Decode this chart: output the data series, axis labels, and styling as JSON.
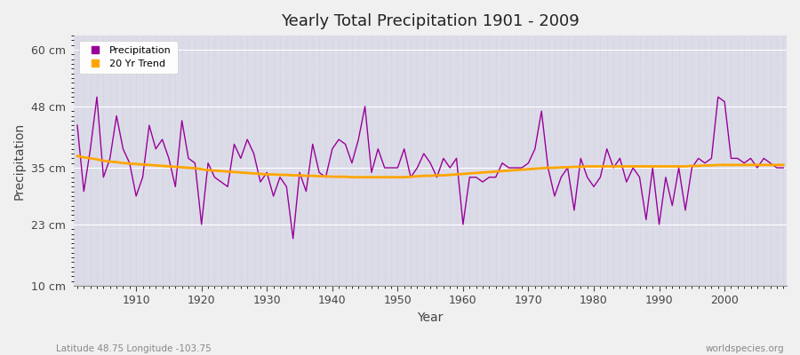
{
  "title": "Yearly Total Precipitation 1901 - 2009",
  "xlabel": "Year",
  "ylabel": "Precipitation",
  "subtitle_left": "Latitude 48.75 Longitude -103.75",
  "subtitle_right": "worldspecies.org",
  "fig_bg_color": "#f0f0f0",
  "plot_bg_color": "#dcdce8",
  "line_color": "#990099",
  "trend_color": "#FFA500",
  "yticks": [
    10,
    23,
    35,
    48,
    60
  ],
  "ytick_labels": [
    "10 cm",
    "23 cm",
    "35 cm",
    "48 cm",
    "60 cm"
  ],
  "ylim": [
    10,
    63
  ],
  "xlim": [
    1900.5,
    2009.5
  ],
  "xticks": [
    1910,
    1920,
    1930,
    1940,
    1950,
    1960,
    1970,
    1980,
    1990,
    2000
  ],
  "years": [
    1901,
    1902,
    1903,
    1904,
    1905,
    1906,
    1907,
    1908,
    1909,
    1910,
    1911,
    1912,
    1913,
    1914,
    1915,
    1916,
    1917,
    1918,
    1919,
    1920,
    1921,
    1922,
    1923,
    1924,
    1925,
    1926,
    1927,
    1928,
    1929,
    1930,
    1931,
    1932,
    1933,
    1934,
    1935,
    1936,
    1937,
    1938,
    1939,
    1940,
    1941,
    1942,
    1943,
    1944,
    1945,
    1946,
    1947,
    1948,
    1949,
    1950,
    1951,
    1952,
    1953,
    1954,
    1955,
    1956,
    1957,
    1958,
    1959,
    1960,
    1961,
    1962,
    1963,
    1964,
    1965,
    1966,
    1967,
    1968,
    1969,
    1970,
    1971,
    1972,
    1973,
    1974,
    1975,
    1976,
    1977,
    1978,
    1979,
    1980,
    1981,
    1982,
    1983,
    1984,
    1985,
    1986,
    1987,
    1988,
    1989,
    1990,
    1991,
    1992,
    1993,
    1994,
    1995,
    1996,
    1997,
    1998,
    1999,
    2000,
    2001,
    2002,
    2003,
    2004,
    2005,
    2006,
    2007,
    2008,
    2009
  ],
  "precip": [
    44,
    30,
    39,
    50,
    33,
    37,
    46,
    39,
    36,
    29,
    33,
    44,
    39,
    41,
    37,
    31,
    45,
    37,
    36,
    23,
    36,
    33,
    32,
    31,
    40,
    37,
    41,
    38,
    32,
    34,
    29,
    33,
    31,
    20,
    34,
    30,
    40,
    34,
    33,
    39,
    41,
    40,
    36,
    41,
    48,
    34,
    39,
    35,
    35,
    35,
    39,
    33,
    35,
    38,
    36,
    33,
    37,
    35,
    37,
    23,
    33,
    33,
    32,
    33,
    33,
    36,
    35,
    35,
    35,
    36,
    39,
    47,
    35,
    29,
    33,
    35,
    26,
    37,
    33,
    31,
    33,
    39,
    35,
    37,
    32,
    35,
    33,
    24,
    35,
    23,
    33,
    27,
    35,
    26,
    35,
    37,
    36,
    37,
    50,
    49,
    37,
    37,
    36,
    37,
    35,
    37,
    36,
    35,
    35
  ],
  "trend": [
    37.5,
    37.2,
    37.0,
    36.8,
    36.5,
    36.3,
    36.2,
    36.0,
    35.9,
    35.8,
    35.7,
    35.6,
    35.5,
    35.4,
    35.3,
    35.2,
    35.1,
    35.0,
    34.9,
    34.7,
    34.5,
    34.4,
    34.3,
    34.2,
    34.1,
    34.0,
    33.9,
    33.8,
    33.7,
    33.6,
    33.6,
    33.5,
    33.5,
    33.4,
    33.4,
    33.3,
    33.3,
    33.2,
    33.2,
    33.1,
    33.1,
    33.1,
    33.0,
    33.0,
    33.0,
    33.0,
    33.0,
    33.0,
    33.0,
    33.0,
    33.0,
    33.1,
    33.2,
    33.3,
    33.3,
    33.4,
    33.4,
    33.5,
    33.6,
    33.7,
    33.8,
    33.9,
    34.0,
    34.1,
    34.2,
    34.3,
    34.4,
    34.5,
    34.6,
    34.7,
    34.8,
    34.9,
    35.0,
    35.0,
    35.1,
    35.1,
    35.2,
    35.2,
    35.3,
    35.3,
    35.3,
    35.3,
    35.3,
    35.3,
    35.3,
    35.3,
    35.3,
    35.3,
    35.3,
    35.3,
    35.3,
    35.3,
    35.3,
    35.3,
    35.4,
    35.4,
    35.5,
    35.5,
    35.6,
    35.6,
    35.6,
    35.6,
    35.6,
    35.6,
    35.6,
    35.6,
    35.6,
    35.6,
    35.6
  ]
}
